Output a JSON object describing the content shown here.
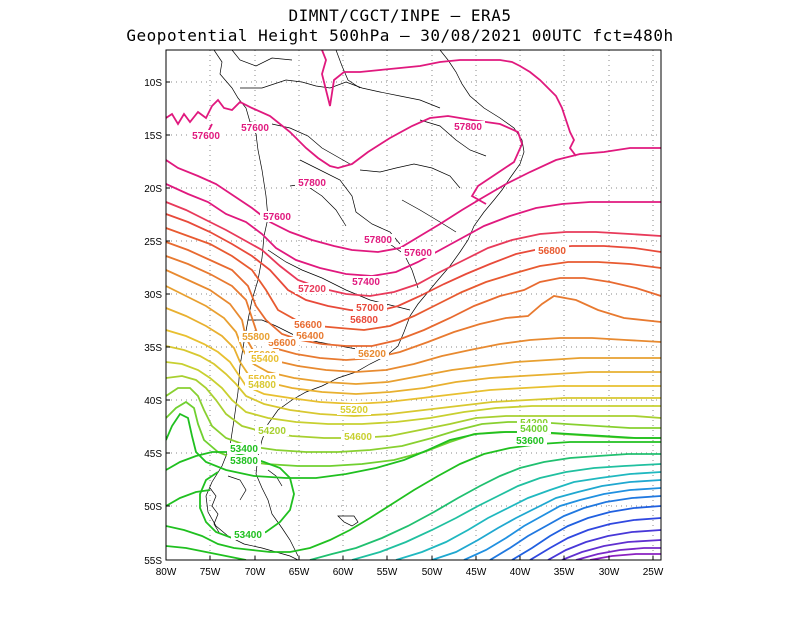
{
  "title_line1": "DIMNT/CGCT/INPE  –   ERA5",
  "title_line2": "Geopotential Height 500hPa –  30/08/2021 00UTC fct=480h",
  "lat_labels": [
    "10S",
    "15S",
    "20S",
    "25S",
    "30S",
    "35S",
    "40S",
    "45S",
    "50S",
    "55S"
  ],
  "lon_labels": [
    "80W",
    "75W",
    "70W",
    "65W",
    "60W",
    "55W",
    "50W",
    "45W",
    "40W",
    "35W",
    "30W",
    "25W"
  ],
  "contour_labels": [
    {
      "text": "57600",
      "color": "#e0197e"
    },
    {
      "text": "57600",
      "color": "#e0197e"
    },
    {
      "text": "57800",
      "color": "#e0197e"
    },
    {
      "text": "57800",
      "color": "#e0197e"
    },
    {
      "text": "57600",
      "color": "#e0197e"
    },
    {
      "text": "57800",
      "color": "#e0197e"
    },
    {
      "text": "57600",
      "color": "#e0197e"
    },
    {
      "text": "57400",
      "color": "#e0197e"
    },
    {
      "text": "57200",
      "color": "#e83a5a"
    },
    {
      "text": "57000",
      "color": "#e84a3a"
    },
    {
      "text": "56800",
      "color": "#e84a3a"
    },
    {
      "text": "56800",
      "color": "#e85a30"
    },
    {
      "text": "56600",
      "color": "#e86a30"
    },
    {
      "text": "56400",
      "color": "#e87a30"
    },
    {
      "text": "56600",
      "color": "#e87a30"
    },
    {
      "text": "56200",
      "color": "#e88a30"
    },
    {
      "text": "55800",
      "color": "#e8a030"
    },
    {
      "text": "55600",
      "color": "#e8b030"
    },
    {
      "text": "55400",
      "color": "#e8c030"
    },
    {
      "text": "55000",
      "color": "#e8c030"
    },
    {
      "text": "54800",
      "color": "#d8c830"
    },
    {
      "text": "55200",
      "color": "#d8d030"
    },
    {
      "text": "54600",
      "color": "#c8d030"
    },
    {
      "text": "54200",
      "color": "#a8d030"
    },
    {
      "text": "54200",
      "color": "#88d030"
    },
    {
      "text": "54000",
      "color": "#70d030"
    },
    {
      "text": "53400",
      "color": "#20c020"
    },
    {
      "text": "53800",
      "color": "#20c020"
    },
    {
      "text": "53600",
      "color": "#20c020"
    },
    {
      "text": "53400",
      "color": "#20c020"
    }
  ]
}
